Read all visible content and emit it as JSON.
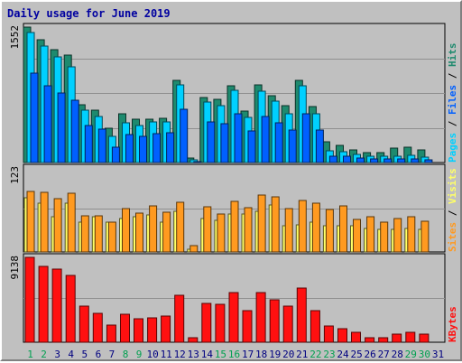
{
  "title": "Daily usage for June 2019",
  "colors": {
    "hits": "#1e8a6e",
    "files": "#00d0ff",
    "pages": "#0060ff",
    "visits": "#ffff66",
    "sites": "#ff9a20",
    "kbytes": "#ff1010",
    "weekend_label": "#00a050",
    "weekday_label": "#000080"
  },
  "chart_data": [
    {
      "type": "bar",
      "categories": [
        "1",
        "2",
        "3",
        "4",
        "5",
        "6",
        "7",
        "8",
        "9",
        "10",
        "11",
        "12",
        "13",
        "14",
        "15",
        "16",
        "17",
        "18",
        "19",
        "20",
        "21",
        "22",
        "23",
        "24",
        "25",
        "26",
        "27",
        "28",
        "29",
        "30",
        "31"
      ],
      "weekend_days": [
        "1",
        "2",
        "8",
        "9",
        "15",
        "16",
        "22",
        "23",
        "29",
        "30"
      ],
      "ylim": [
        0,
        1552
      ],
      "tick_label": "1552",
      "series": [
        {
          "name": "Hits",
          "values": [
            1552,
            1410,
            1290,
            1230,
            660,
            600,
            390,
            560,
            500,
            500,
            510,
            940,
            50,
            740,
            720,
            880,
            590,
            890,
            770,
            650,
            940,
            640,
            240,
            200,
            150,
            110,
            110,
            170,
            180,
            150,
            0
          ]
        },
        {
          "name": "Files",
          "values": [
            1490,
            1330,
            1210,
            1100,
            600,
            530,
            300,
            460,
            420,
            470,
            470,
            890,
            30,
            690,
            650,
            830,
            520,
            820,
            700,
            560,
            880,
            560,
            130,
            120,
            90,
            70,
            70,
            70,
            80,
            60,
            0
          ]
        },
        {
          "name": "Pages",
          "values": [
            1020,
            880,
            800,
            710,
            420,
            380,
            180,
            320,
            300,
            330,
            340,
            610,
            10,
            470,
            450,
            560,
            360,
            530,
            460,
            370,
            560,
            370,
            70,
            70,
            50,
            40,
            40,
            40,
            40,
            30,
            0
          ]
        }
      ],
      "legend": [
        "Pages",
        "Files",
        "Hits"
      ],
      "legend_separator": "/"
    },
    {
      "type": "bar",
      "categories": [
        "1",
        "2",
        "3",
        "4",
        "5",
        "6",
        "7",
        "8",
        "9",
        "10",
        "11",
        "12",
        "13",
        "14",
        "15",
        "16",
        "17",
        "18",
        "19",
        "20",
        "21",
        "22",
        "23",
        "24",
        "25",
        "26",
        "27",
        "28",
        "29",
        "30",
        "31"
      ],
      "ylim": [
        0,
        123
      ],
      "tick_label": "123",
      "series": [
        {
          "name": "Visits",
          "values": [
            79,
            71,
            52,
            71,
            44,
            51,
            44,
            49,
            51,
            54,
            44,
            60,
            4,
            49,
            46,
            55,
            55,
            59,
            69,
            38,
            40,
            43,
            38,
            38,
            38,
            35,
            33,
            33,
            35,
            33,
            0
          ]
        },
        {
          "name": "Sites",
          "values": [
            89,
            87,
            78,
            86,
            53,
            53,
            43,
            64,
            57,
            67,
            58,
            73,
            9,
            66,
            55,
            74,
            65,
            83,
            81,
            63,
            76,
            71,
            62,
            67,
            48,
            51,
            43,
            49,
            51,
            45,
            0
          ]
        }
      ],
      "legend": [
        "Sites",
        "Visits"
      ],
      "legend_separator": "/"
    },
    {
      "type": "bar",
      "categories": [
        "1",
        "2",
        "3",
        "4",
        "5",
        "6",
        "7",
        "8",
        "9",
        "10",
        "11",
        "12",
        "13",
        "14",
        "15",
        "16",
        "17",
        "18",
        "19",
        "20",
        "21",
        "22",
        "23",
        "24",
        "25",
        "26",
        "27",
        "28",
        "29",
        "30",
        "31"
      ],
      "ylim": [
        0,
        9138
      ],
      "tick_label": "9138",
      "series": [
        {
          "name": "KBytes",
          "values": [
            9138,
            8150,
            7830,
            7200,
            3900,
            3070,
            1840,
            2980,
            2480,
            2660,
            2810,
            5090,
            440,
            4180,
            4100,
            5320,
            3390,
            5360,
            4560,
            3840,
            5870,
            3450,
            1790,
            1500,
            1060,
            490,
            530,
            900,
            1080,
            850,
            0
          ]
        }
      ],
      "legend": [
        "KBytes"
      ]
    }
  ]
}
